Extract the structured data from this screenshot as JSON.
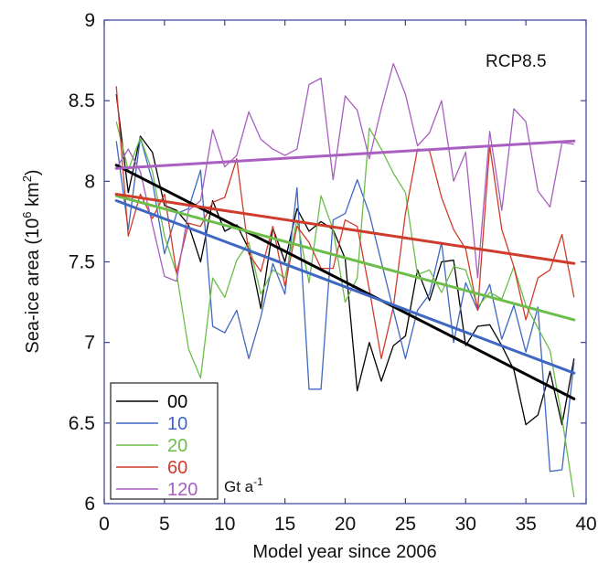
{
  "chart_data": {
    "type": "line",
    "annotation": "RCP8.5",
    "xlabel": "Model year since 2006",
    "ylabel_main": "Sea-ice area (10",
    "ylabel_sup1": "6",
    "ylabel_mid": " km",
    "ylabel_sup2": "2",
    "ylabel_end": ")",
    "xlim": [
      0,
      40
    ],
    "ylim": [
      6,
      9
    ],
    "xticks": [
      0,
      5,
      10,
      15,
      20,
      25,
      30,
      35,
      40
    ],
    "yticks": [
      6,
      6.5,
      7,
      7.5,
      8,
      8.5,
      9
    ],
    "xtick_labels": [
      "0",
      "5",
      "10",
      "15",
      "20",
      "25",
      "30",
      "35",
      "40"
    ],
    "ytick_labels": [
      "6",
      "6.5",
      "7",
      "7.5",
      "8",
      "8.5",
      "9"
    ],
    "legend_position": "bottom-left",
    "legend_unit": "Gt a",
    "legend_unit_sup": "-1",
    "x": [
      1,
      2,
      3,
      4,
      5,
      6,
      7,
      8,
      9,
      10,
      11,
      12,
      13,
      14,
      15,
      16,
      17,
      18,
      19,
      20,
      21,
      22,
      23,
      24,
      25,
      26,
      27,
      28,
      29,
      30,
      31,
      32,
      33,
      34,
      35,
      36,
      37,
      38,
      39
    ],
    "series": [
      {
        "name": "00",
        "color": "#000000",
        "values": [
          8.54,
          7.93,
          8.28,
          8.18,
          7.85,
          7.82,
          7.73,
          7.5,
          7.88,
          7.69,
          7.73,
          7.58,
          7.21,
          7.71,
          7.5,
          7.83,
          7.69,
          7.75,
          7.7,
          7.52,
          6.7,
          7.0,
          6.76,
          6.98,
          7.04,
          7.45,
          7.26,
          7.5,
          7.51,
          6.98,
          7.1,
          7.11,
          6.98,
          6.83,
          6.49,
          6.55,
          6.82,
          6.49,
          6.9
        ],
        "trend": [
          8.1,
          6.65
        ]
      },
      {
        "name": "10",
        "color": "#3f68c2",
        "values": [
          8.25,
          7.7,
          8.27,
          8.0,
          7.55,
          7.8,
          7.83,
          8.07,
          7.1,
          7.06,
          7.2,
          6.9,
          7.16,
          7.49,
          7.3,
          7.96,
          6.71,
          6.71,
          7.76,
          7.8,
          8.01,
          7.8,
          7.5,
          7.2,
          6.9,
          7.2,
          7.3,
          7.62,
          7.0,
          7.37,
          7.2,
          7.36,
          7.02,
          7.23,
          6.94,
          7.22,
          6.2,
          6.21,
          6.88
        ],
        "trend": [
          7.88,
          6.81
        ]
      },
      {
        "name": "20",
        "color": "#6cbd4a",
        "values": [
          8.37,
          8.07,
          8.27,
          8.06,
          7.66,
          7.43,
          6.96,
          6.78,
          7.4,
          7.28,
          7.51,
          7.62,
          7.3,
          7.45,
          7.4,
          7.76,
          7.37,
          7.91,
          7.7,
          7.25,
          7.4,
          8.33,
          8.2,
          8.05,
          7.93,
          7.42,
          7.45,
          7.31,
          7.47,
          7.45,
          7.22,
          7.31,
          7.27,
          7.47,
          7.23,
          7.09,
          6.95,
          6.53,
          6.04
        ],
        "trend": [
          7.91,
          7.14
        ]
      },
      {
        "name": "60",
        "color": "#cf3c2c",
        "values": [
          8.59,
          7.66,
          7.92,
          7.77,
          7.92,
          7.43,
          7.74,
          7.72,
          7.87,
          7.9,
          8.14,
          7.55,
          7.44,
          7.72,
          7.35,
          7.72,
          7.62,
          7.46,
          7.46,
          7.76,
          7.72,
          7.33,
          6.9,
          7.22,
          7.8,
          8.2,
          8.19,
          7.9,
          7.7,
          7.58,
          7.2,
          8.22,
          7.7,
          7.47,
          7.14,
          7.4,
          7.45,
          7.67,
          7.28
        ],
        "trend": [
          7.92,
          7.49
        ]
      },
      {
        "name": "120",
        "color": "#a85fbf",
        "values": [
          8.08,
          8.2,
          8.06,
          7.73,
          7.41,
          7.38,
          7.82,
          7.88,
          8.32,
          8.09,
          8.16,
          8.43,
          8.26,
          8.2,
          8.16,
          8.2,
          8.6,
          8.64,
          8.01,
          8.53,
          8.44,
          8.14,
          8.45,
          8.73,
          8.54,
          8.22,
          8.3,
          8.5,
          8.0,
          8.18,
          7.4,
          8.31,
          7.82,
          8.45,
          8.37,
          7.94,
          7.84,
          8.24,
          8.23
        ],
        "trend": [
          8.08,
          8.25
        ]
      }
    ]
  }
}
